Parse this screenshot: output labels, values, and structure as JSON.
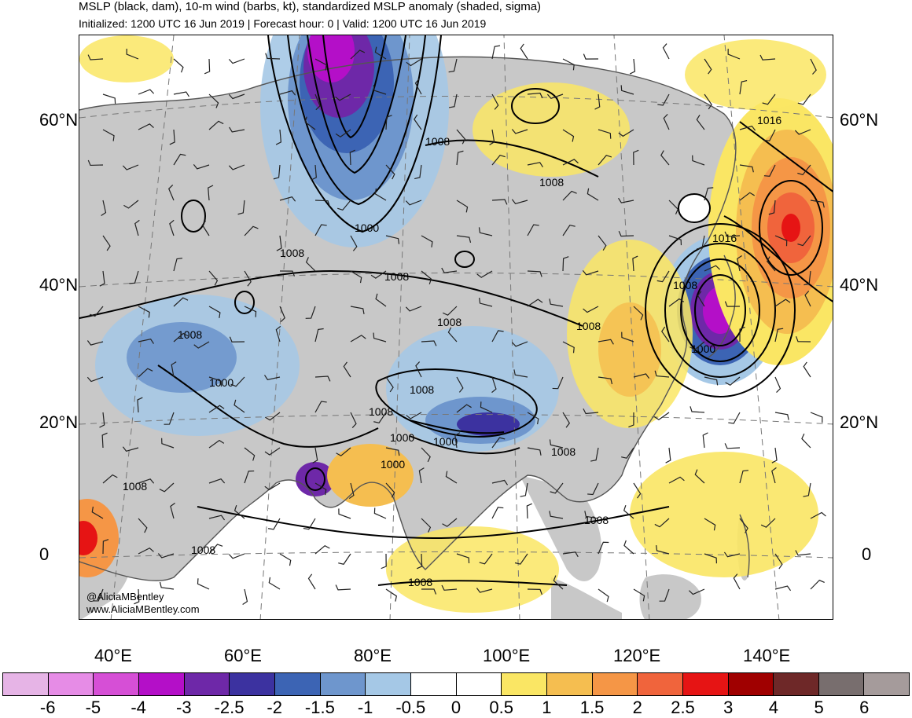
{
  "header": {
    "title": "MSLP (black, dam), 10-m wind (barbs, kt), standardized MSLP anomaly (shaded, sigma)",
    "subtitle": "Initialized: 1200 UTC 16 Jun 2019 | Forecast hour: 0 | Valid: 1200 UTC 16 Jun 2019"
  },
  "map": {
    "lat_labels": [
      "60°N",
      "40°N",
      "20°N",
      "0"
    ],
    "lon_labels": [
      "40°E",
      "60°E",
      "80°E",
      "100°E",
      "120°E",
      "140°E"
    ],
    "contour_labels": [
      "1008",
      "1008",
      "1016",
      "1016",
      "1000",
      "1008",
      "1008",
      "1008",
      "1008",
      "1008",
      "1000",
      "1000",
      "1008",
      "1008",
      "1000",
      "1000",
      "1000",
      "1008",
      "1008",
      "1008",
      "1008",
      "1008",
      "1008"
    ],
    "credit_line1": "@AliciaMBentley",
    "credit_line2": "www.AliciaMBentley.com",
    "fill_colors": {
      "land": "#c8c8c8",
      "ocean": "#ffffff",
      "coast": "#555555",
      "contour": "#000000"
    }
  },
  "colorbar": {
    "labels": [
      "-6",
      "-5",
      "-4",
      "-3",
      "-2.5",
      "-2",
      "-1.5",
      "-1",
      "-0.5",
      "0",
      "0.5",
      "1",
      "1.5",
      "2",
      "2.5",
      "3",
      "4",
      "5",
      "6"
    ],
    "colors": [
      "#e6b4e6",
      "#e68ce6",
      "#d64fd6",
      "#b40fc8",
      "#6e28a8",
      "#3c32a0",
      "#3c64b4",
      "#6e96cd",
      "#a5c8e6",
      "#ffffff",
      "#ffffff",
      "#fae664",
      "#f5be50",
      "#f59646",
      "#f0643c",
      "#e61414",
      "#a00000",
      "#6e2828",
      "#786e6e",
      "#a59b9b"
    ]
  }
}
